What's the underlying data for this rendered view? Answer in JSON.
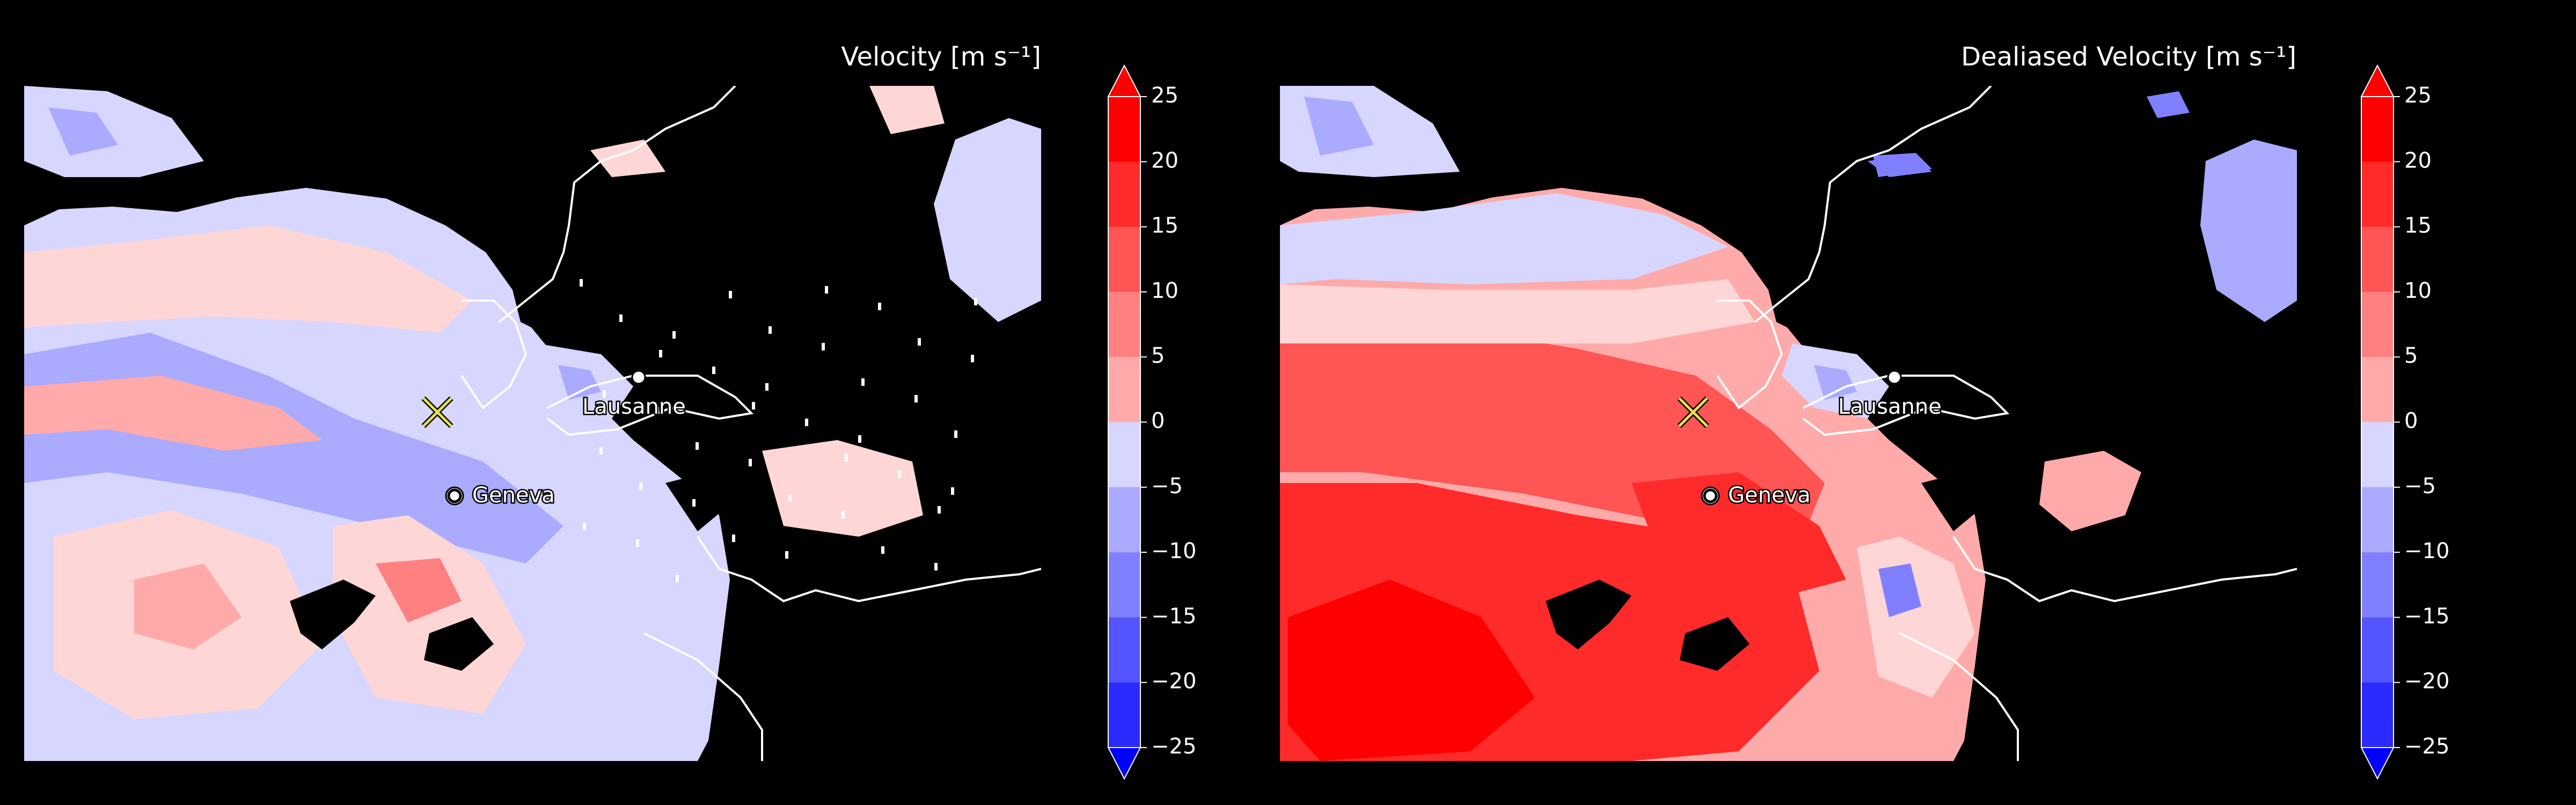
{
  "panels": [
    {
      "title": "Velocity [m s⁻¹]",
      "kind": "raw",
      "cities": [
        {
          "name": "Lausanne",
          "marker": "dot"
        },
        {
          "name": "Geneva",
          "marker": "ring"
        }
      ],
      "radar_marker": "x-marker"
    },
    {
      "title": "Dealiased Velocity [m s⁻¹]",
      "kind": "dealiased",
      "cities": [
        {
          "name": "Lausanne",
          "marker": "dot"
        },
        {
          "name": "Geneva",
          "marker": "ring"
        }
      ],
      "radar_marker": "x-marker"
    }
  ],
  "colorbar": {
    "ticks": [
      "25",
      "20",
      "15",
      "10",
      "5",
      "0",
      "−5",
      "−10",
      "−15",
      "−20",
      "−25"
    ],
    "min": -25,
    "max": 25,
    "extend": "both",
    "colors": [
      "#ff0000",
      "#ff2b2b",
      "#ff5555",
      "#ff8080",
      "#ffaaaa",
      "#ffd6d6",
      "#d6d6ff",
      "#aaaaff",
      "#8080ff",
      "#5555ff",
      "#2b2bff",
      "#0000ff"
    ]
  },
  "colors": {
    "background": "#000000",
    "borders": "#ffffff",
    "radar_marker": "#e8e04a"
  }
}
